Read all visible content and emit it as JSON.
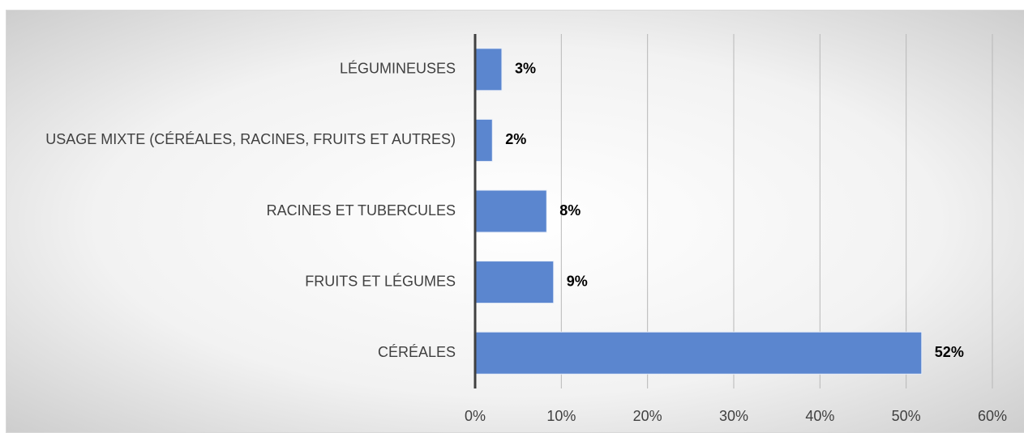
{
  "chart_data": {
    "type": "hbar",
    "categories": [
      "LÉGUMINEUSES",
      "USAGE MIXTE (CÉRÉALES, RACINES, FRUITS ET AUTRES)",
      "RACINES ET TUBERCULES",
      "FRUITS ET LÉGUMES",
      "CÉRÉALES"
    ],
    "values": [
      3.1,
      2.0,
      8.3,
      9.1,
      51.8
    ],
    "value_labels": [
      "3%",
      "2%",
      "8%",
      "9%",
      "52%"
    ],
    "color": "#5b86cf",
    "xlim": [
      0,
      60
    ],
    "xticks": [
      {
        "value": 0,
        "label": "0%"
      },
      {
        "value": 10,
        "label": "10%"
      },
      {
        "value": 20,
        "label": "20%"
      },
      {
        "value": 30,
        "label": "30%"
      },
      {
        "value": 40,
        "label": "40%"
      },
      {
        "value": 50,
        "label": "50%"
      },
      {
        "value": 60,
        "label": "60%"
      }
    ],
    "grid": true
  }
}
